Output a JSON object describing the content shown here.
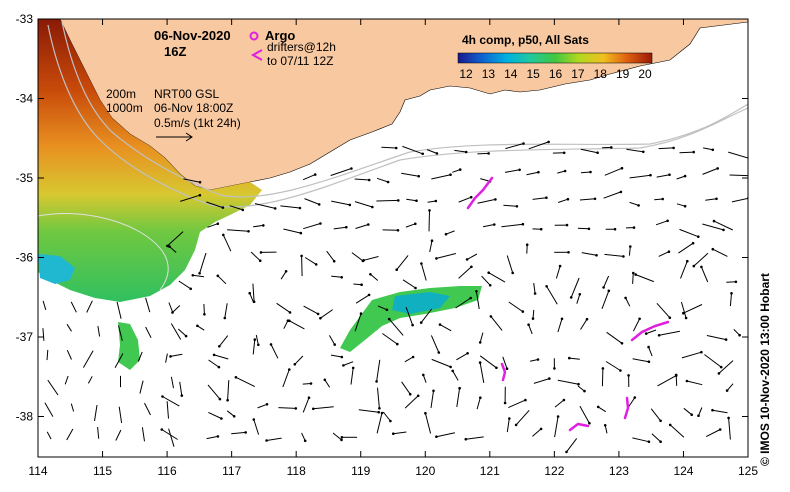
{
  "header": {
    "date": "06-Nov-2020",
    "hour": "16Z"
  },
  "argo": {
    "label": "Argo",
    "drifters_line1": "drifters@12h",
    "drifters_line2": "to 07/11 12Z"
  },
  "colorbar": {
    "title": "4h comp, p50, All Sats",
    "ticks": [
      "12",
      "13",
      "14",
      "15",
      "16",
      "17",
      "18",
      "19",
      "20"
    ]
  },
  "isobaths": {
    "shallow": "200m",
    "deep": "1000m"
  },
  "current_info": {
    "line1": "NRT00 GSL",
    "line2": "06-Nov 18:00Z",
    "line3": "0.5m/s (1kt 24h)"
  },
  "axes": {
    "lon_ticks": [
      "114",
      "115",
      "116",
      "117",
      "118",
      "119",
      "120",
      "121",
      "122",
      "123",
      "124",
      "125"
    ],
    "lat_ticks": [
      "-33",
      "-34",
      "-35",
      "-36",
      "-37",
      "-38"
    ]
  },
  "credit": "©  IMOS 10-Nov-2020 13:00 Hobart",
  "colors": {
    "land": "#f8c8a0",
    "argo_marker": "#e020e0",
    "frame": "#000000"
  }
}
